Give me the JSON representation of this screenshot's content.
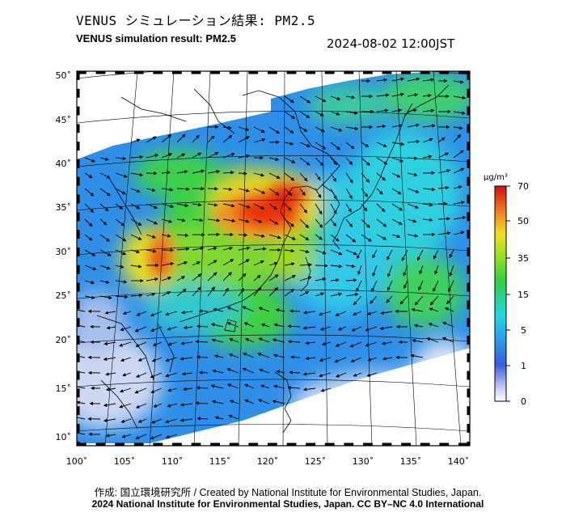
{
  "title_jp": "VENUS シミュレーション結果: PM2.5",
  "title_en": "VENUS simulation result: PM2.5",
  "timestamp": "2024-08-02 12:00JST",
  "colorbar": {
    "unit": "µg/m³",
    "ticks": [
      "70",
      "50",
      "35",
      "15",
      "5",
      "1",
      "0"
    ]
  },
  "axes": {
    "lat_ticks": [
      "50˚",
      "45˚",
      "40˚",
      "35˚",
      "30˚",
      "25˚",
      "20˚",
      "15˚",
      "10˚"
    ],
    "lon_ticks": [
      "100˚",
      "105˚",
      "110˚",
      "115˚",
      "120˚",
      "125˚",
      "130˚",
      "135˚",
      "140˚"
    ],
    "lat_range": [
      9,
      51
    ],
    "lon_range": [
      100,
      141
    ]
  },
  "credits": {
    "line1": "作成: 国立環境研究所 / Created by National Institute for Environmental Studies, Japan.",
    "line2": "2024 National Institute for Environmental Studies, Japan. CC BY–NC 4.0 International"
  },
  "colors": {
    "low": "#e8ecf6",
    "blue": "#3a7be0",
    "cyan": "#2fd0e0",
    "green": "#3cd03c",
    "yellow": "#f0e020",
    "orange": "#f08020",
    "red": "#e02010"
  }
}
